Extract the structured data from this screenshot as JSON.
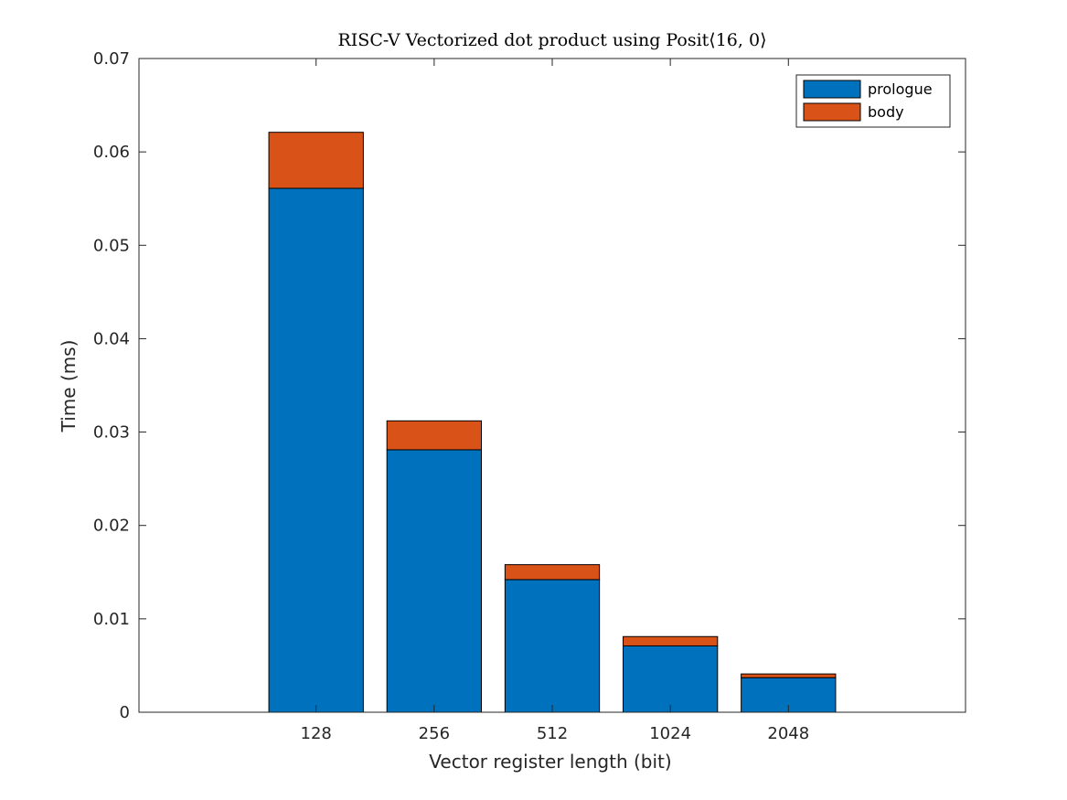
{
  "chart_data": {
    "type": "bar",
    "stacked": true,
    "title": "RISC-V Vectorized dot product using Posit⟨16, 0⟩",
    "xlabel": "Vector register length (bit)",
    "ylabel": "Time (ms)",
    "categories": [
      "128",
      "256",
      "512",
      "1024",
      "2048"
    ],
    "series": [
      {
        "name": "prologue",
        "color": "#0072BD",
        "values": [
          0.0561,
          0.0281,
          0.0142,
          0.0071,
          0.0037
        ]
      },
      {
        "name": "body",
        "color": "#D95319",
        "values": [
          0.006,
          0.0031,
          0.0016,
          0.001,
          0.0004
        ]
      }
    ],
    "ylim": [
      0,
      0.07
    ],
    "yticks": [
      "0",
      "0.01",
      "0.02",
      "0.03",
      "0.04",
      "0.05",
      "0.06",
      "0.07"
    ],
    "grid": false,
    "legend": {
      "placement": "top-right",
      "entries": [
        "prologue",
        "body"
      ]
    }
  }
}
